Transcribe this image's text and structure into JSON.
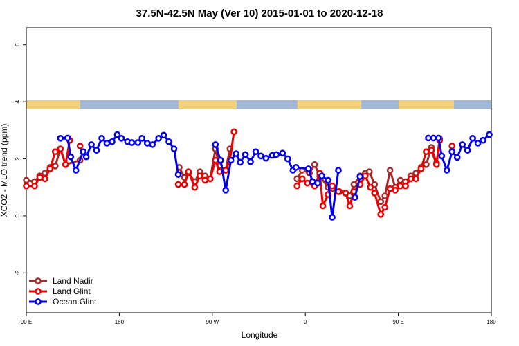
{
  "chart_data": {
    "type": "line",
    "title": "37.5N-42.5N May (Ver 10)   2015-01-01 to 2020-12-18",
    "xlabel": "Longitude",
    "ylabel": "XCO2 - MLO trend (ppm)",
    "xlim": [
      90,
      540
    ],
    "xticks": [
      {
        "value": 90,
        "label": "90 E"
      },
      {
        "value": 180,
        "label": "180"
      },
      {
        "value": 270,
        "label": "90 W"
      },
      {
        "value": 360,
        "label": "0"
      },
      {
        "value": 450,
        "label": "90 E"
      },
      {
        "value": 540,
        "label": "180"
      }
    ],
    "ylim": [
      -3.4,
      6.6
    ],
    "yticks": [
      -2,
      0,
      2,
      4,
      6
    ],
    "legend": "bottom-left",
    "series": [
      {
        "name": "Land Nadir",
        "color": "#a52a2a",
        "x": [
          90,
          98,
          103,
          108,
          113,
          118,
          123,
          128,
          142,
          180,
          238,
          243,
          247,
          253,
          258,
          263,
          268,
          273,
          277,
          283,
          287,
          320,
          352,
          357,
          364,
          369,
          374,
          382,
          386,
          393,
          399,
          403,
          407,
          413,
          418,
          422,
          427,
          433,
          437,
          442,
          447,
          452,
          457,
          462,
          467,
          472,
          477,
          482,
          487,
          490
        ],
        "values": [
          1.25,
          1.2,
          1.4,
          1.5,
          1.7,
          1.75,
          2.35,
          1.8,
          1.95,
          null,
          1.7,
          1.35,
          1.5,
          1.2,
          1.55,
          1.4,
          1.3,
          2.35,
          1.75,
          1.6,
          2.35,
          null,
          1.3,
          1.6,
          1.5,
          1.8,
          1.4,
          1.0,
          0.95,
          0.85,
          0.8,
          0.7,
          1.1,
          1.4,
          1.5,
          1.55,
          1.1,
          0.5,
          0.7,
          1.6,
          1.0,
          1.25,
          1.2,
          1.4,
          1.5,
          1.7,
          1.8,
          2.4,
          1.85,
          2.7
        ]
      },
      {
        "name": "Land Glint",
        "color": "#ee0000",
        "x": [
          90,
          98,
          103,
          108,
          113,
          118,
          123,
          128,
          132,
          137,
          142,
          190,
          237,
          243,
          247,
          253,
          258,
          263,
          268,
          273,
          277,
          283,
          287,
          291,
          320,
          352,
          357,
          362,
          369,
          374,
          377,
          382,
          386,
          392,
          399,
          403,
          407,
          413,
          418,
          423,
          427,
          433,
          437,
          442,
          447,
          452,
          457,
          462,
          467,
          472,
          477,
          482,
          487,
          490,
          496,
          502
        ],
        "values": [
          1.05,
          1.05,
          1.35,
          1.3,
          1.65,
          2.25,
          2.35,
          1.8,
          2.65,
          null,
          2.45,
          null,
          1.1,
          1.1,
          1.55,
          1.0,
          1.4,
          1.25,
          1.3,
          1.95,
          1.55,
          1.6,
          1.95,
          2.95,
          null,
          1.05,
          1.3,
          1.15,
          1.05,
          1.5,
          0.35,
          0.75,
          1.05,
          0.85,
          0.8,
          0.35,
          0.85,
          1.1,
          1.4,
          1.0,
          0.8,
          0.05,
          0.3,
          0.95,
          0.9,
          1.05,
          1.05,
          1.3,
          1.3,
          1.65,
          2.25,
          2.3,
          1.8,
          2.65,
          null,
          2.45
        ]
      },
      {
        "name": "Ocean Glint",
        "color": "#0000ee",
        "x": [
          123,
          130,
          133,
          138,
          145,
          148,
          153,
          158,
          163,
          168,
          173,
          178,
          182,
          188,
          192,
          198,
          202,
          207,
          212,
          218,
          223,
          228,
          233,
          237,
          255,
          273,
          278,
          283,
          288,
          293,
          297,
          302,
          307,
          312,
          317,
          322,
          328,
          332,
          338,
          343,
          348,
          351,
          363,
          367,
          372,
          376,
          382,
          386,
          392,
          400,
          408,
          413,
          450,
          479,
          484,
          489,
          492,
          497,
          502,
          507,
          512,
          517,
          522,
          527,
          532,
          538
        ],
        "values": [
          2.72,
          2.73,
          2.07,
          1.6,
          2.25,
          2.07,
          2.5,
          2.3,
          2.72,
          2.55,
          2.6,
          2.85,
          2.72,
          2.6,
          2.57,
          2.57,
          2.72,
          2.55,
          2.5,
          2.72,
          2.83,
          2.6,
          2.35,
          1.45,
          null,
          2.5,
          1.95,
          0.9,
          1.95,
          2.18,
          1.88,
          2.15,
          1.9,
          2.25,
          2.1,
          2.02,
          2.12,
          2.15,
          2.2,
          2.0,
          1.6,
          1.7,
          1.65,
          1.2,
          1.15,
          1.4,
          1.25,
          -0.05,
          1.6,
          null,
          0.65,
          1.38,
          null,
          2.73,
          2.73,
          2.73,
          2.1,
          1.6,
          2.25,
          2.05,
          2.5,
          2.3,
          2.72,
          2.55,
          2.65,
          2.85
        ]
      }
    ]
  }
}
